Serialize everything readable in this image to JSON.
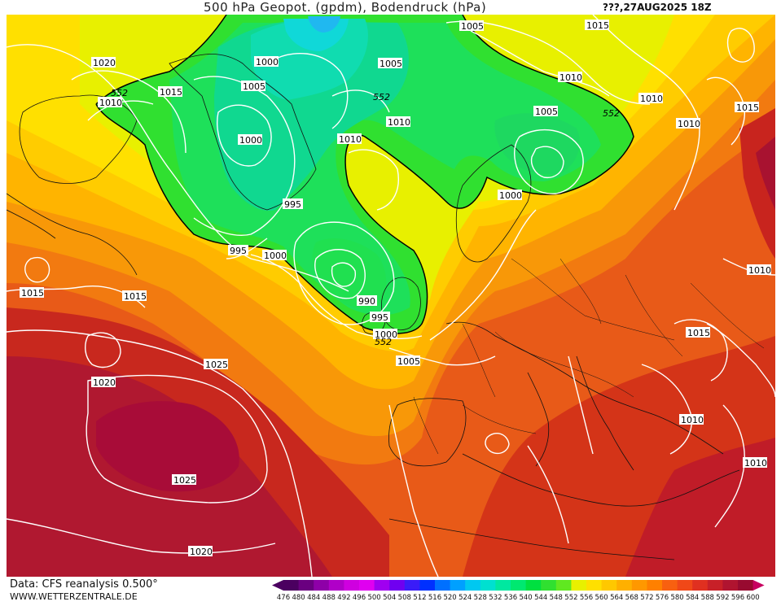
{
  "title": "500 hPa Geopot. (gpdm), Bodendruck (hPa)",
  "run_label": "???,27AUG2025 18Z",
  "source_label": "Data: CFS reanalysis 0.500°",
  "website": "WWW.WETTERZENTRALE.DE",
  "legend": {
    "values": [
      "476",
      "480",
      "484",
      "488",
      "492",
      "496",
      "500",
      "504",
      "508",
      "512",
      "516",
      "520",
      "524",
      "528",
      "532",
      "536",
      "540",
      "544",
      "548",
      "552",
      "556",
      "560",
      "564",
      "568",
      "572",
      "576",
      "580",
      "584",
      "588",
      "592",
      "596",
      "600"
    ],
    "colors": [
      "#4b0060",
      "#6a0080",
      "#8e00a8",
      "#b000c8",
      "#cf00e0",
      "#e000f0",
      "#a000f0",
      "#7000f0",
      "#3a1cf8",
      "#0030ff",
      "#0070ff",
      "#00a0ff",
      "#00c8f0",
      "#00e0d0",
      "#00e8a0",
      "#00e870",
      "#00e040",
      "#30e030",
      "#60e820",
      "#e8f000",
      "#ffe000",
      "#ffc800",
      "#ffb000",
      "#ff9800",
      "#ff8000",
      "#f86010",
      "#f04818",
      "#e03020",
      "#c82028",
      "#b01430",
      "#980a30",
      "#c80060"
    ]
  },
  "map_labels": {
    "iso_1020_nw": "1020",
    "iso_1015_nw": "1015",
    "iso_1010_nw": "1010",
    "iso_552_nw": "552",
    "iso_1005_a": "1005",
    "iso_1000_a": "1000",
    "iso_1005_b": "1005",
    "iso_1000_b": "1000",
    "iso_1010_b": "1010",
    "iso_1005_c": "1005",
    "iso_1015_ne": "1015",
    "iso_1010_ne": "1010",
    "iso_552_ne": "552",
    "iso_1010_e": "1010",
    "iso_1015_e": "1015",
    "iso_1005_e": "1005",
    "iso_1010_c": "1010",
    "iso_1010_d": "1010",
    "iso_1000_c": "1000",
    "iso_995_a": "995",
    "iso_995_b": "995",
    "iso_1000_d": "1000",
    "iso_552_w": "552",
    "iso_990": "990",
    "iso_995_c": "995",
    "iso_1000_e": "1000",
    "iso_552_s": "552",
    "iso_1005_f": "1005",
    "iso_1015_w": "1015",
    "iso_1015_w2": "1015",
    "iso_1020_sw": "1020",
    "iso_1025_a": "1025",
    "iso_1025_b": "1025",
    "iso_1020_s": "1020",
    "iso_1010_far_e": "1010",
    "iso_1015_far_e": "1015",
    "iso_1010_se": "1010",
    "iso_1010_far_se": "1010"
  }
}
